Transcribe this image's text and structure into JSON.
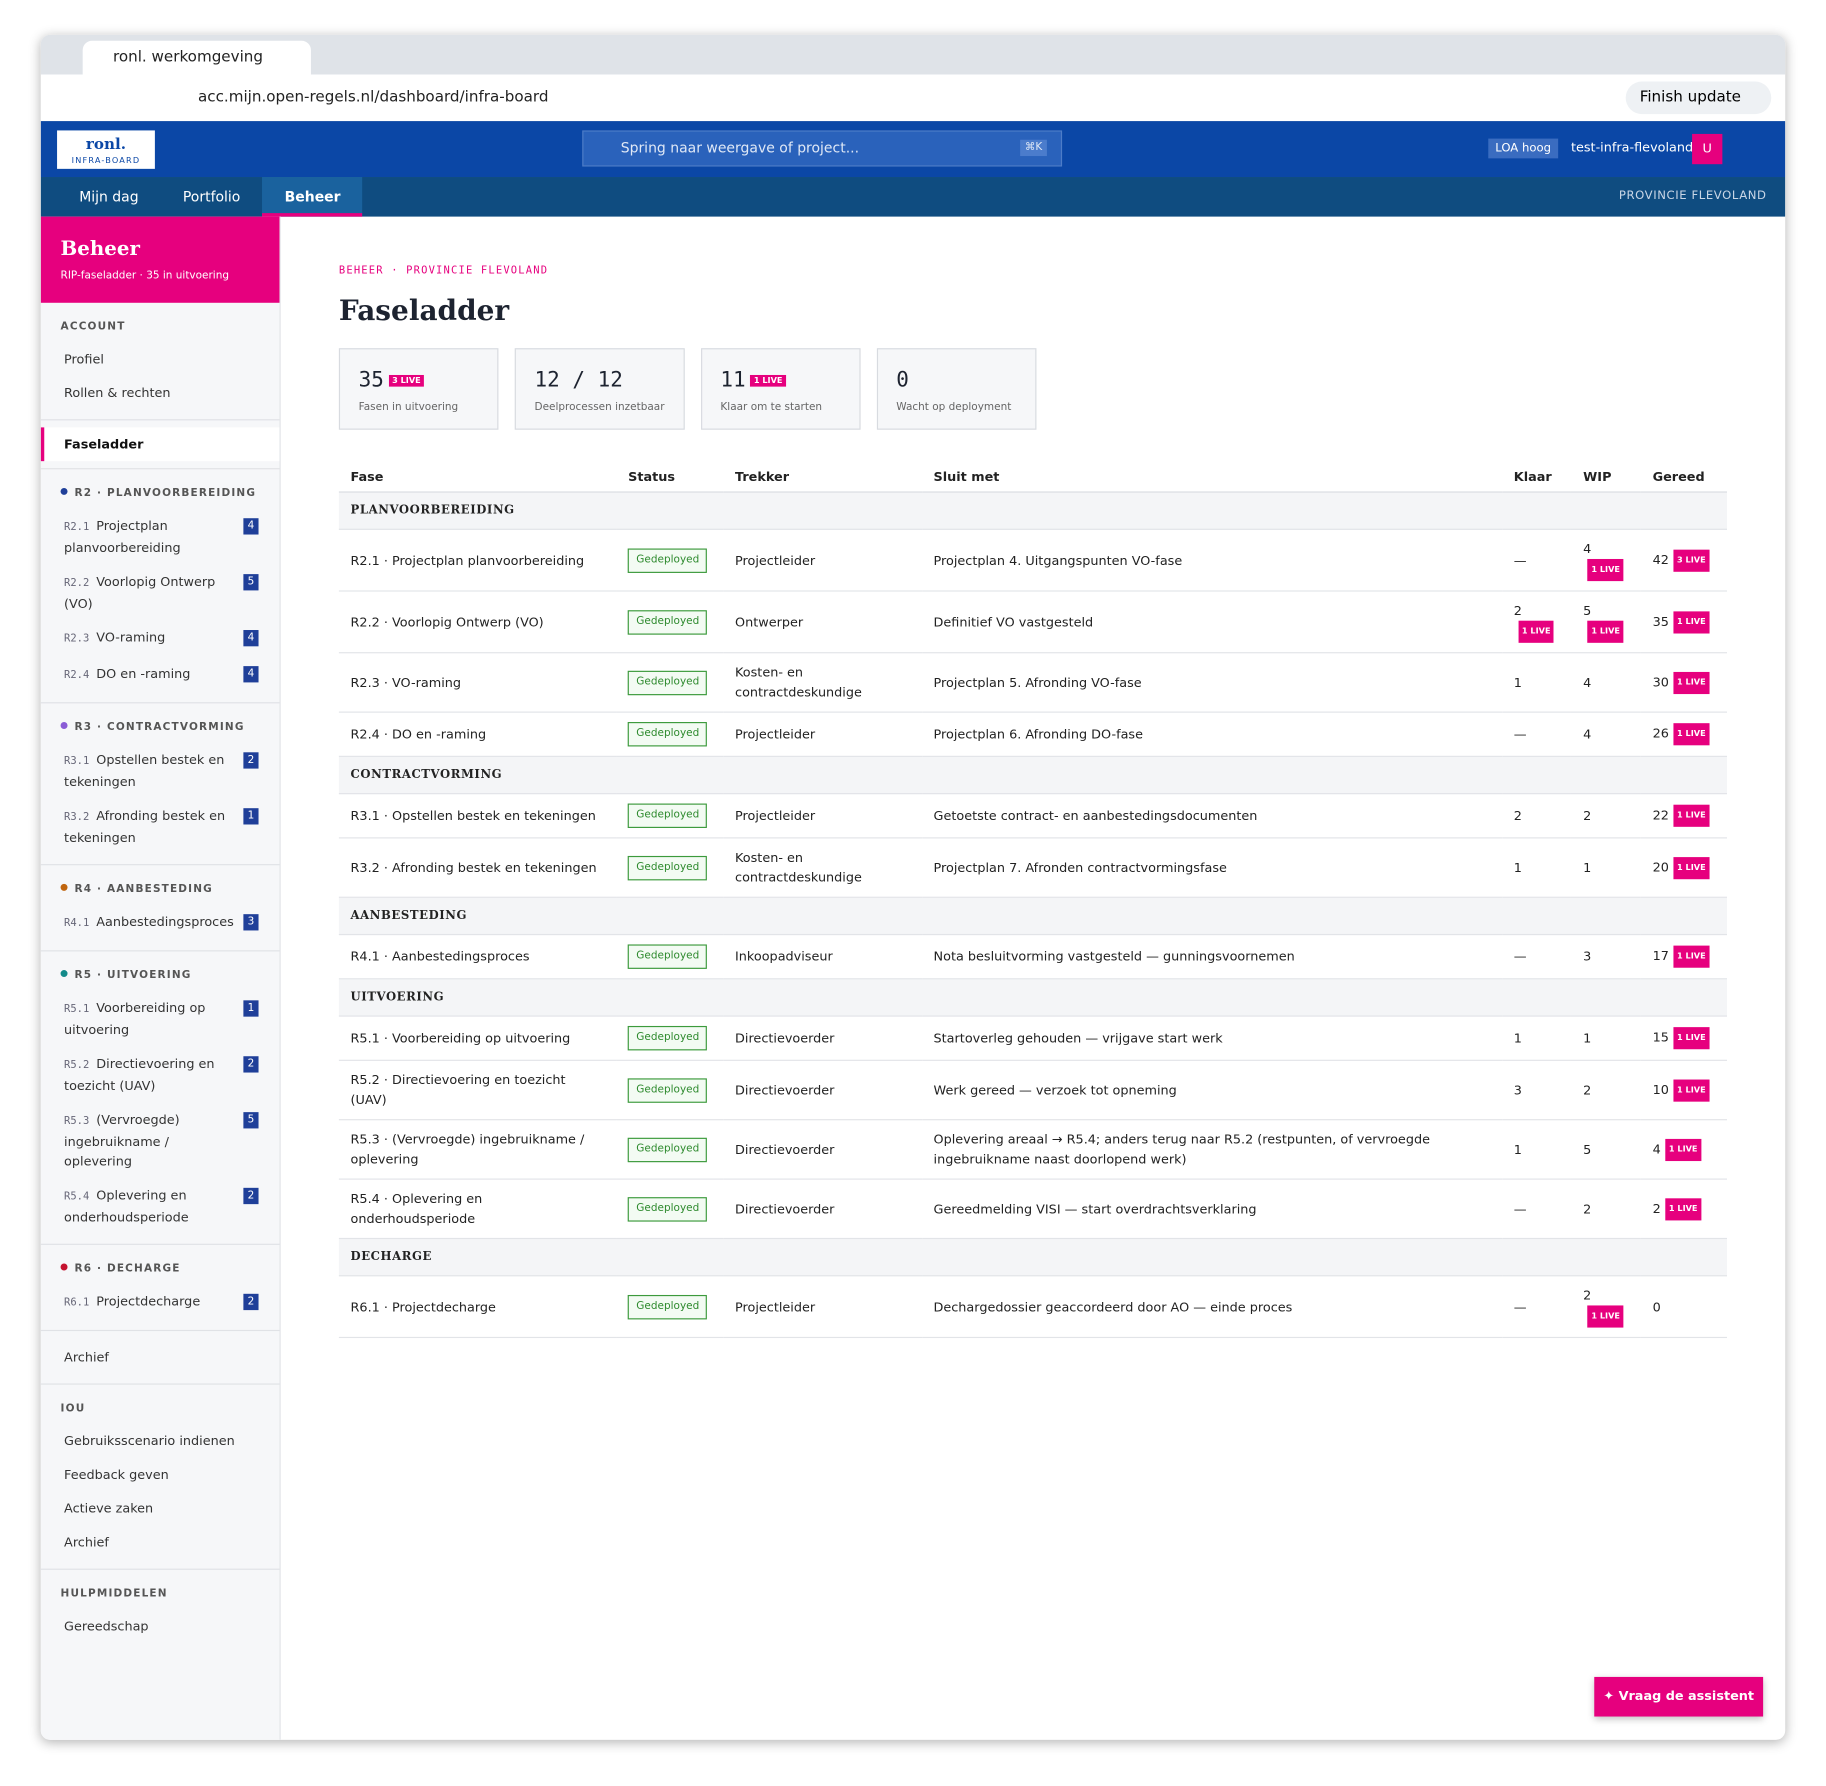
{
  "browser": {
    "tab_title": "ronl. werkomgeving",
    "url": "acc.mijn.open-regels.nl/dashboard/infra-board",
    "update_button": "Finish update"
  },
  "header": {
    "logo": "ronl.",
    "logo_sub": "INFRA-BOARD",
    "search": "Spring naar weergave of project...",
    "search_shortcut": "⌘K",
    "loa": "LOA hoog",
    "user": "test-infra-flevoland",
    "avatar": "U"
  },
  "nav": {
    "tabs": [
      "Mijn dag",
      "Portfolio",
      "Beheer"
    ],
    "active": 2,
    "org": "PROVINCIE FLEVOLAND"
  },
  "sidebar": {
    "title": "Beheer",
    "subtitle": "RIP-faseladder · 35 in uitvoering",
    "account_heading": "ACCOUNT",
    "account_items": [
      "Profiel",
      "Rollen & rechten"
    ],
    "active_item": "Faseladder",
    "groups": [
      {
        "heading": "R2 · PLANVOORBEREIDING",
        "color": "#1f3f99",
        "items": [
          {
            "code": "R2.1",
            "label": "Projectplan planvoorbereiding",
            "count": 4
          },
          {
            "code": "R2.2",
            "label": "Voorlopig Ontwerp (VO)",
            "count": 5
          },
          {
            "code": "R2.3",
            "label": "VO-raming",
            "count": 4
          },
          {
            "code": "R2.4",
            "label": "DO en -raming",
            "count": 4
          }
        ]
      },
      {
        "heading": "R3 · CONTRACTVORMING",
        "color": "#8a5cd6",
        "items": [
          {
            "code": "R3.1",
            "label": "Opstellen bestek en tekeningen",
            "count": 2
          },
          {
            "code": "R3.2",
            "label": "Afronding bestek en tekeningen",
            "count": 1
          }
        ]
      },
      {
        "heading": "R4 · AANBESTEDING",
        "color": "#c0650f",
        "items": [
          {
            "code": "R4.1",
            "label": "Aanbestedingsproces",
            "count": 3
          }
        ]
      },
      {
        "heading": "R5 · UITVOERING",
        "color": "#138a8a",
        "items": [
          {
            "code": "R5.1",
            "label": "Voorbereiding op uitvoering",
            "count": 1
          },
          {
            "code": "R5.2",
            "label": "Directievoering en toezicht (UAV)",
            "count": 2
          },
          {
            "code": "R5.3",
            "label": "(Vervroegde) ingebruikname / oplevering",
            "count": 5
          },
          {
            "code": "R5.4",
            "label": "Oplevering en onderhoudsperiode",
            "count": 2
          }
        ]
      },
      {
        "heading": "R6 · DECHARGE",
        "color": "#c4122f",
        "items": [
          {
            "code": "R6.1",
            "label": "Projectdecharge",
            "count": 2
          }
        ]
      }
    ],
    "archive": "Archief",
    "iou_heading": "IOU",
    "iou_items": [
      "Gebruiksscenario indienen",
      "Feedback geven",
      "Actieve zaken",
      "Archief"
    ],
    "tools_heading": "HULPMIDDELEN",
    "tools_items": [
      "Gereedschap"
    ]
  },
  "main": {
    "breadcrumb": "BEHEER · PROVINCIE FLEVOLAND",
    "title": "Faseladder",
    "stats": [
      {
        "value": "35",
        "badge": "3 LIVE",
        "label": "Fasen in uitvoering"
      },
      {
        "value": "12 / 12",
        "label": "Deelprocessen inzetbaar"
      },
      {
        "value": "11",
        "badge": "1 LIVE",
        "label": "Klaar om te starten"
      },
      {
        "value": "0",
        "label": "Wacht op deployment"
      }
    ],
    "table": {
      "columns": [
        "Fase",
        "Status",
        "Trekker",
        "Sluit met",
        "Klaar",
        "WIP",
        "Gereed"
      ],
      "sections": [
        {
          "name": "PLANVOORBEREIDING",
          "rows": [
            {
              "fase": "R2.1 · Projectplan planvoorbereiding",
              "status": "Gedeployed",
              "trekker": "Projectleider",
              "sluit": "Projectplan 4. Uitgangspunten VO-fase",
              "klaar": "—",
              "wip": {
                "value": "4",
                "live": "1 LIVE"
              },
              "gereed": {
                "value": "42",
                "live": "3 LIVE"
              }
            },
            {
              "fase": "R2.2 · Voorlopig Ontwerp (VO)",
              "status": "Gedeployed",
              "trekker": "Ontwerper",
              "sluit": "Definitief VO vastgesteld",
              "klaar": {
                "value": "2",
                "live": "1 LIVE"
              },
              "wip": {
                "value": "5",
                "live": "1 LIVE"
              },
              "gereed": {
                "value": "35",
                "live": "1 LIVE"
              }
            },
            {
              "fase": "R2.3 · VO-raming",
              "status": "Gedeployed",
              "trekker": "Kosten- en contractdeskundige",
              "sluit": "Projectplan 5. Afronding VO-fase",
              "klaar": "1",
              "wip": "4",
              "gereed": {
                "value": "30",
                "live": "1 LIVE"
              }
            },
            {
              "fase": "R2.4 · DO en -raming",
              "status": "Gedeployed",
              "trekker": "Projectleider",
              "sluit": "Projectplan 6. Afronding DO-fase",
              "klaar": "—",
              "wip": "4",
              "gereed": {
                "value": "26",
                "live": "1 LIVE"
              }
            }
          ]
        },
        {
          "name": "CONTRACTVORMING",
          "rows": [
            {
              "fase": "R3.1 · Opstellen bestek en tekeningen",
              "status": "Gedeployed",
              "trekker": "Projectleider",
              "sluit": "Getoetste contract- en aanbestedingsdocumenten",
              "klaar": "2",
              "wip": "2",
              "gereed": {
                "value": "22",
                "live": "1 LIVE"
              }
            },
            {
              "fase": "R3.2 · Afronding bestek en tekeningen",
              "status": "Gedeployed",
              "trekker": "Kosten- en contractdeskundige",
              "sluit": "Projectplan 7. Afronden contractvormingsfase",
              "klaar": "1",
              "wip": "1",
              "gereed": {
                "value": "20",
                "live": "1 LIVE"
              }
            }
          ]
        },
        {
          "name": "AANBESTEDING",
          "rows": [
            {
              "fase": "R4.1 · Aanbestedingsproces",
              "status": "Gedeployed",
              "trekker": "Inkoopadviseur",
              "sluit": "Nota besluitvorming vastgesteld — gunningsvoornemen",
              "klaar": "—",
              "wip": "3",
              "gereed": {
                "value": "17",
                "live": "1 LIVE"
              }
            }
          ]
        },
        {
          "name": "UITVOERING",
          "rows": [
            {
              "fase": "R5.1 · Voorbereiding op uitvoering",
              "status": "Gedeployed",
              "trekker": "Directievoerder",
              "sluit": "Startoverleg gehouden — vrijgave start werk",
              "klaar": "1",
              "wip": "1",
              "gereed": {
                "value": "15",
                "live": "1 LIVE"
              }
            },
            {
              "fase": "R5.2 · Directievoering en toezicht (UAV)",
              "status": "Gedeployed",
              "trekker": "Directievoerder",
              "sluit": "Werk gereed — verzoek tot opneming",
              "klaar": "3",
              "wip": "2",
              "gereed": {
                "value": "10",
                "live": "1 LIVE"
              }
            },
            {
              "fase": "R5.3 · (Vervroegde) ingebruikname / oplevering",
              "status": "Gedeployed",
              "trekker": "Directievoerder",
              "sluit": "Oplevering areaal → R5.4; anders terug naar R5.2 (restpunten, of vervroegde ingebruikname naast doorlopend werk)",
              "klaar": "1",
              "wip": "5",
              "gereed": {
                "value": "4",
                "live": "1 LIVE"
              }
            },
            {
              "fase": "R5.4 · Oplevering en onderhoudsperiode",
              "status": "Gedeployed",
              "trekker": "Directievoerder",
              "sluit": "Gereedmelding VISI — start overdrachtsverklaring",
              "klaar": "—",
              "wip": "2",
              "gereed": {
                "value": "2",
                "live": "1 LIVE"
              }
            }
          ]
        },
        {
          "name": "DECHARGE",
          "rows": [
            {
              "fase": "R6.1 · Projectdecharge",
              "status": "Gedeployed",
              "trekker": "Projectleider",
              "sluit": "Dechargedossier geaccordeerd door AO — einde proces",
              "klaar": "—",
              "wip": {
                "value": "2",
                "live": "1 LIVE"
              },
              "gereed": "0"
            }
          ]
        }
      ]
    }
  },
  "assistant": "Vraag de assistent"
}
